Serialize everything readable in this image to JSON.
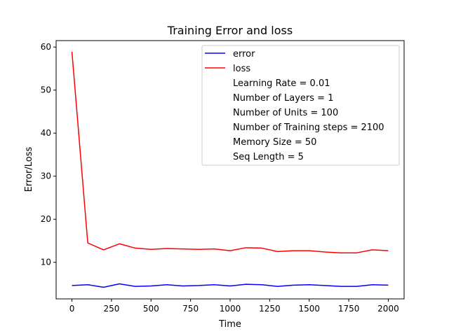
{
  "chart_data": {
    "type": "line",
    "title": "Training Error and loss",
    "xlabel": "Time",
    "ylabel": "Error/Loss",
    "xlim": [
      -100,
      2100
    ],
    "ylim": [
      1.5,
      61.5
    ],
    "xticks": [
      0,
      250,
      500,
      750,
      1000,
      1250,
      1500,
      1750,
      2000
    ],
    "yticks": [
      10,
      20,
      30,
      40,
      50,
      60
    ],
    "grid": false,
    "legend_position": "top-right",
    "x": [
      0,
      100,
      200,
      300,
      400,
      500,
      600,
      700,
      800,
      900,
      1000,
      1100,
      1200,
      1300,
      1400,
      1500,
      1600,
      1700,
      1800,
      1900,
      2000
    ],
    "series": [
      {
        "name": "error",
        "color": "#0000ff",
        "values": [
          4.6,
          4.8,
          4.2,
          5.0,
          4.4,
          4.5,
          4.8,
          4.5,
          4.6,
          4.8,
          4.5,
          4.9,
          4.8,
          4.4,
          4.7,
          4.8,
          4.6,
          4.4,
          4.4,
          4.8,
          4.7
        ]
      },
      {
        "name": "loss",
        "color": "#ff0000",
        "values": [
          58.9,
          14.5,
          12.9,
          14.3,
          13.3,
          13.0,
          13.2,
          13.1,
          13.0,
          13.1,
          12.7,
          13.4,
          13.3,
          12.5,
          12.7,
          12.7,
          12.4,
          12.2,
          12.2,
          12.9,
          12.7
        ]
      }
    ],
    "legend_notes": [
      "Learning Rate = 0.01",
      "Number of Layers = 1",
      "Number of Units = 100",
      "Number of Training steps = 2100",
      "Memory Size = 50",
      "Seq Length = 5"
    ]
  }
}
